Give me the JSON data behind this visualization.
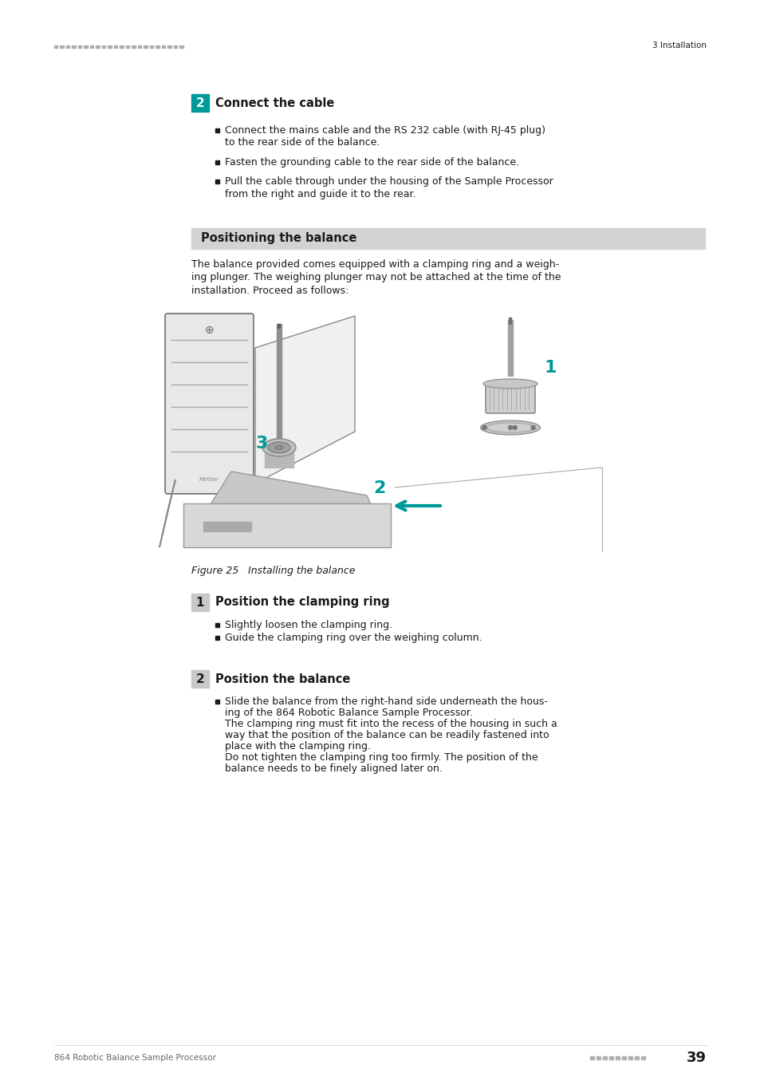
{
  "page_bg": "#ffffff",
  "header_dots_color": "#b0b0b0",
  "header_right_text": "3 Installation",
  "footer_left_text": "864 Robotic Balance Sample Processor",
  "footer_right_text": "39",
  "footer_dots_color": "#b0b0b0",
  "section2_number": "2",
  "section2_title": "Connect the cable",
  "section2_bullet1_line1": "Connect the mains cable and the RS 232 cable (with RJ-45 plug)",
  "section2_bullet1_line2": "to the rear side of the balance.",
  "section2_bullet2": "Fasten the grounding cable to the rear side of the balance.",
  "section2_bullet3_line1": "Pull the cable through under the housing of the Sample Processor",
  "section2_bullet3_line2": "from the right and guide it to the rear.",
  "positioning_header": "Positioning the balance",
  "positioning_header_bg": "#d3d3d3",
  "pos_line1": "The balance provided comes equipped with a clamping ring and a weigh-",
  "pos_line2": "ing plunger. The weighing plunger may not be attached at the time of the",
  "pos_line3": "installation. Proceed as follows:",
  "figure_caption_italic": "Figure 25",
  "figure_caption_rest": "    Installing the balance",
  "section1_number": "1",
  "section1_title": "Position the clamping ring",
  "section1_bullet1": "Slightly loosen the clamping ring.",
  "section1_bullet2": "Guide the clamping ring over the weighing column.",
  "section2b_number": "2",
  "section2b_title": "Position the balance",
  "s2b_line1": "Slide the balance from the right-hand side underneath the hous-",
  "s2b_line2": "ing of the 864 Robotic Balance Sample Processor.",
  "s2b_line3": "The clamping ring must fit into the recess of the housing in such a",
  "s2b_line4": "way that the position of the balance can be readily fastened into",
  "s2b_line5": "place with the clamping ring.",
  "s2b_line6": "Do not tighten the clamping ring too firmly. The position of the",
  "s2b_line7": "balance needs to be finely aligned later on.",
  "teal_color": "#009999",
  "num_box_teal": "#009999",
  "num_box_gray": "#c8c8c8",
  "text_dark": "#1a1a1a",
  "text_gray": "#444444",
  "body_fs": 9.0,
  "title_fs": 10.5,
  "hdr_fs": 7.5
}
